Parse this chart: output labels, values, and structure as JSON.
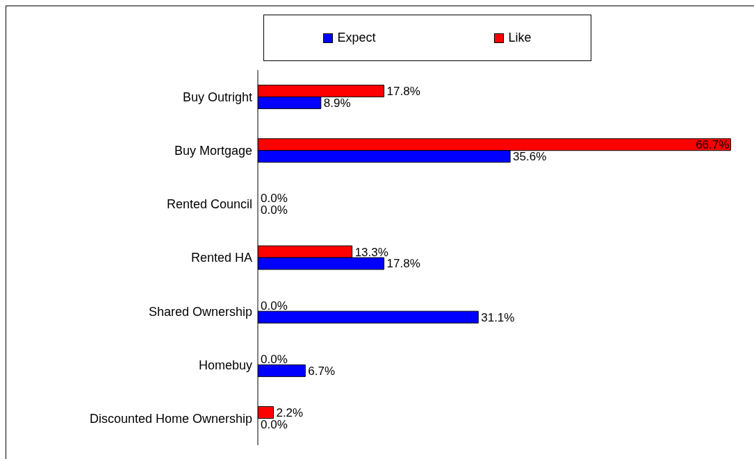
{
  "chart_data": {
    "type": "bar",
    "orientation": "horizontal",
    "categories": [
      "Buy Outright",
      "Buy Mortgage",
      "Rented Council",
      "Rented HA",
      "Shared Ownership",
      "Homebuy",
      "Discounted Home Ownership"
    ],
    "series": [
      {
        "name": "Expect",
        "color": "#0000ff",
        "values": [
          8.9,
          35.6,
          0,
          17.8,
          31.1,
          6.7,
          0
        ],
        "value_labels": [
          "8.9%",
          "35.6%",
          "0.0%",
          "17.8%",
          "31.1%",
          "6.7%",
          "0.0%"
        ]
      },
      {
        "name": "Like",
        "color": "#ff0000",
        "values": [
          17.8,
          66.7,
          0,
          13.3,
          0,
          0,
          2.2
        ],
        "value_labels": [
          "17.8%",
          "66.7%",
          "0.0%",
          "13.3%",
          "0.0%",
          "0.0%",
          "2.2%"
        ]
      }
    ],
    "xlim": [
      0,
      70
    ],
    "tick_labels": "y",
    "legend": "top"
  }
}
